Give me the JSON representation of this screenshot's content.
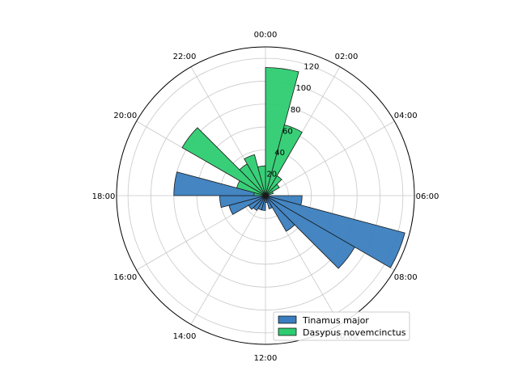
{
  "chart_data": {
    "type": "polar-bar",
    "title": "",
    "theta_direction": "clockwise",
    "theta_zero": "top",
    "angle_tick_labels": [
      "00:00",
      "02:00",
      "04:00",
      "06:00",
      "08:00",
      "10:00",
      "12:00",
      "14:00",
      "16:00",
      "18:00",
      "20:00",
      "22:00"
    ],
    "radial_ticks": [
      20,
      40,
      60,
      80,
      100,
      120
    ],
    "rlim": [
      0,
      130
    ],
    "grid": true,
    "legend_position": "lower-right",
    "bin_hours": 1,
    "bin_starts": [
      "00:00",
      "01:00",
      "02:00",
      "03:00",
      "04:00",
      "05:00",
      "06:00",
      "07:00",
      "08:00",
      "09:00",
      "10:00",
      "11:00",
      "12:00",
      "13:00",
      "14:00",
      "15:00",
      "16:00",
      "17:00",
      "18:00",
      "19:00",
      "20:00",
      "21:00",
      "22:00",
      "23:00"
    ],
    "series": [
      {
        "name": "Tinamus major",
        "color": "#3a7ebf",
        "values": [
          0,
          0,
          0,
          0,
          0,
          0,
          32,
          126,
          90,
          36,
          12,
          6,
          13,
          13,
          15,
          17,
          33,
          40,
          80,
          0,
          0,
          0,
          0,
          0
        ]
      },
      {
        "name": "Dasypus novemcinctus",
        "color": "#2ecc71",
        "values": [
          112,
          64,
          20,
          14,
          7,
          3,
          0,
          0,
          0,
          0,
          0,
          0,
          0,
          0,
          0,
          0,
          0,
          0,
          10,
          26,
          84,
          32,
          37,
          26
        ]
      }
    ]
  }
}
